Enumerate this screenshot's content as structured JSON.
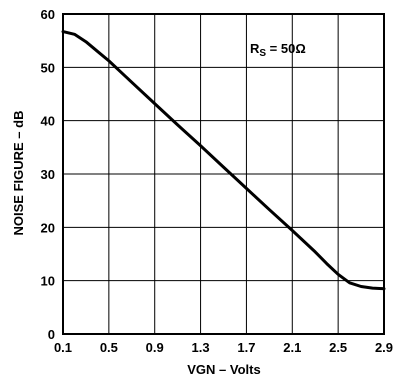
{
  "chart_data": {
    "type": "line",
    "title": "",
    "xlabel": "VGN – Volts",
    "ylabel": "NOISE FIGURE – dB",
    "xlim": [
      0.1,
      2.9
    ],
    "ylim": [
      0,
      60
    ],
    "x_ticks": [
      "0.1",
      "0.5",
      "0.9",
      "1.3",
      "1.7",
      "2.1",
      "2.5",
      "2.9"
    ],
    "y_ticks": [
      "0",
      "10",
      "20",
      "30",
      "40",
      "50",
      "60"
    ],
    "grid": true,
    "annotation": {
      "main": "R",
      "sub": "S",
      "rest": " = 50Ω"
    },
    "series": [
      {
        "x": [
          0.1,
          0.2,
          0.3,
          0.4,
          0.5,
          0.7,
          0.9,
          1.1,
          1.3,
          1.5,
          1.7,
          1.9,
          2.1,
          2.3,
          2.4,
          2.5,
          2.6,
          2.7,
          2.8,
          2.9
        ],
        "y": [
          56.7,
          56.2,
          54.8,
          53.0,
          51.2,
          47.2,
          43.2,
          39.2,
          35.3,
          31.3,
          27.3,
          23.3,
          19.4,
          15.4,
          13.2,
          11.2,
          9.6,
          8.9,
          8.6,
          8.5
        ]
      }
    ]
  }
}
